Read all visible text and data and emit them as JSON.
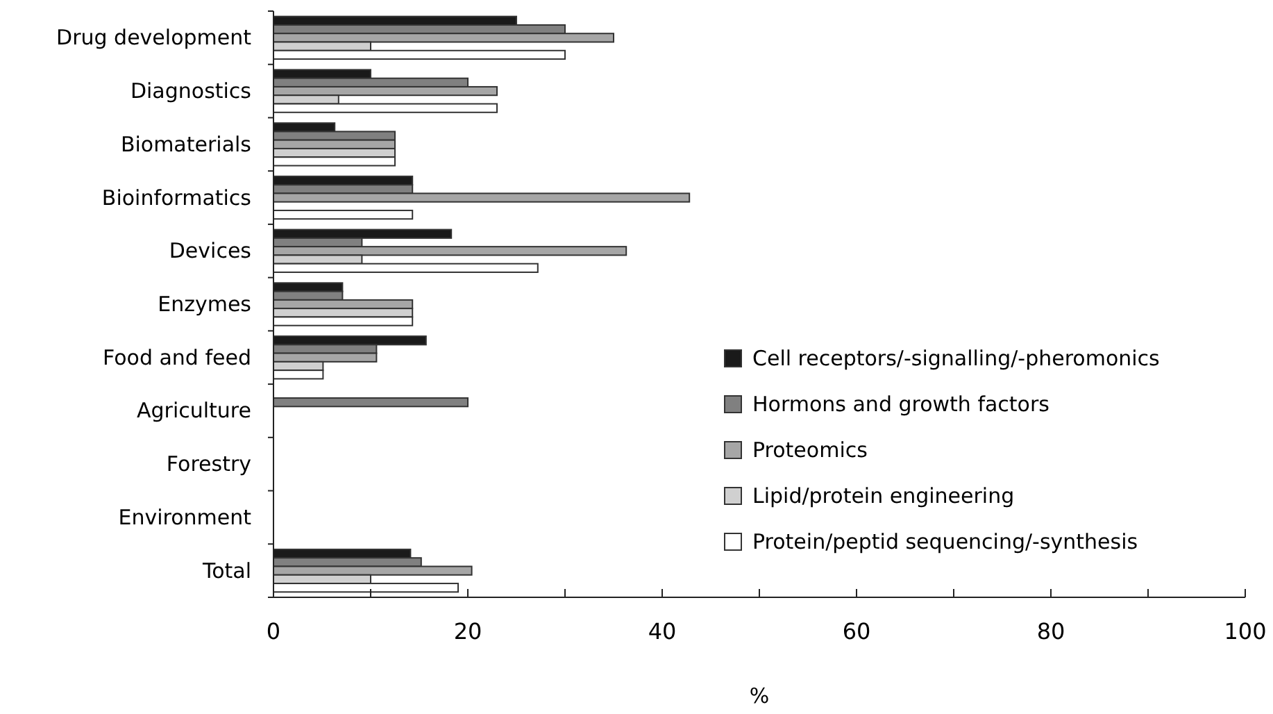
{
  "chart_data": {
    "type": "bar",
    "orientation": "horizontal",
    "xlabel": "%",
    "categories": [
      "Drug development",
      "Diagnostics",
      "Biomaterials",
      "Bioinformatics",
      "Devices",
      "Enzymes",
      "Food and feed",
      "Agriculture",
      "Forestry",
      "Environment",
      "Total"
    ],
    "series": [
      {
        "name": "Cell receptors/-signalling/-pheromonics",
        "color": "#1a1a1a",
        "values": [
          25,
          10,
          6.3,
          14.3,
          18.3,
          7.1,
          15.7,
          0,
          0,
          0,
          14.1
        ]
      },
      {
        "name": "Hormons and growth factors",
        "color": "#808080",
        "values": [
          30,
          20,
          12.5,
          14.3,
          9.1,
          7.1,
          10.6,
          20,
          0,
          0,
          15.2
        ]
      },
      {
        "name": "Proteomics",
        "color": "#a6a6a6",
        "values": [
          35,
          23,
          12.5,
          42.8,
          36.3,
          14.3,
          10.6,
          0,
          0,
          0,
          20.4
        ]
      },
      {
        "name": "Lipid/protein engineering",
        "color": "#d0d0d0",
        "values": [
          10,
          6.7,
          12.5,
          0,
          9.1,
          14.3,
          5.1,
          0,
          0,
          0,
          10
        ]
      },
      {
        "name": "Protein/peptid sequencing/-synthesis",
        "color": "#ffffff",
        "values": [
          30,
          23,
          12.5,
          14.3,
          27.2,
          14.3,
          5.1,
          0,
          0,
          0,
          19
        ]
      }
    ],
    "xlim": [
      0,
      100
    ],
    "xticks": [
      0,
      {
        "value": 10,
        "label": null
      },
      20,
      {
        "value": 30,
        "label": null
      },
      40,
      {
        "value": 50,
        "label": null
      },
      60,
      {
        "value": 70,
        "label": null
      },
      80,
      {
        "value": 90,
        "label": null
      },
      100
    ],
    "legend": "right",
    "grid": false
  }
}
